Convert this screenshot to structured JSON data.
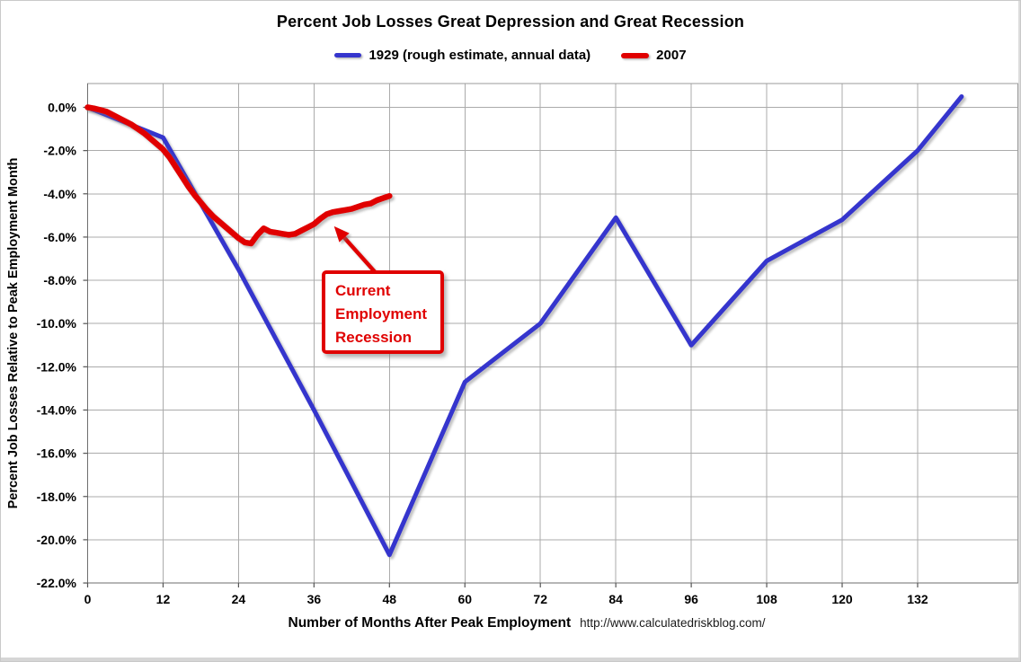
{
  "window": {
    "title": "Percent Job Losses Great Depression and Great Recession"
  },
  "source_note": "http://www.calculatedriskblog.com/",
  "colors": {
    "series_1929": "#3535cd",
    "series_2007": "#e00000",
    "gridline": "#ababab",
    "plot_frame": "#9b9b9b",
    "axis_line": "#6e6e6e",
    "tick": "#555555",
    "annotation_red": "#e00000"
  },
  "chart_data": {
    "type": "line",
    "title": "Percent Job Losses Great Depression and Great Recession",
    "xlabel": "Number of Months After Peak Employment",
    "ylabel": "Percent Job Losses Relative to Peak Employment Month",
    "xlim": [
      0,
      148
    ],
    "ylim": [
      -22,
      1
    ],
    "grid": true,
    "legend_position": "top-center",
    "x_ticks": [
      0,
      12,
      24,
      36,
      48,
      60,
      72,
      84,
      96,
      108,
      120,
      132
    ],
    "y_ticks": [
      {
        "value": 0,
        "label": "0.0%"
      },
      {
        "value": -2,
        "label": "-2.0%"
      },
      {
        "value": -4,
        "label": "-4.0%"
      },
      {
        "value": -6,
        "label": "-6.0%"
      },
      {
        "value": -8,
        "label": "-8.0%"
      },
      {
        "value": -10,
        "label": "-10.0%"
      },
      {
        "value": -12,
        "label": "-12.0%"
      },
      {
        "value": -14,
        "label": "-14.0%"
      },
      {
        "value": -16,
        "label": "-16.0%"
      },
      {
        "value": -18,
        "label": "-18.0%"
      },
      {
        "value": -20,
        "label": "-20.0%"
      },
      {
        "value": -22,
        "label": "-22.0%"
      }
    ],
    "series": [
      {
        "name": "1929 (rough estimate, annual data)",
        "color": "#3535cd",
        "line_width": 5,
        "points": [
          [
            0,
            0
          ],
          [
            12,
            -1.4
          ],
          [
            24,
            -7.5
          ],
          [
            36,
            -14.0
          ],
          [
            48,
            -20.7
          ],
          [
            60,
            -12.7
          ],
          [
            72,
            -10.0
          ],
          [
            84,
            -5.1
          ],
          [
            96,
            -11.0
          ],
          [
            108,
            -7.1
          ],
          [
            120,
            -5.2
          ],
          [
            132,
            -2.0
          ],
          [
            139,
            0.5
          ]
        ]
      },
      {
        "name": "2007",
        "color": "#e00000",
        "line_width": 6.5,
        "points": [
          [
            0,
            0
          ],
          [
            1,
            -0.05
          ],
          [
            2,
            -0.12
          ],
          [
            3,
            -0.2
          ],
          [
            4,
            -0.35
          ],
          [
            5,
            -0.5
          ],
          [
            6,
            -0.65
          ],
          [
            7,
            -0.8
          ],
          [
            8,
            -1.0
          ],
          [
            9,
            -1.2
          ],
          [
            10,
            -1.45
          ],
          [
            11,
            -1.7
          ],
          [
            12,
            -1.95
          ],
          [
            13,
            -2.3
          ],
          [
            14,
            -2.75
          ],
          [
            15,
            -3.2
          ],
          [
            16,
            -3.65
          ],
          [
            17,
            -4.05
          ],
          [
            18,
            -4.4
          ],
          [
            19,
            -4.75
          ],
          [
            20,
            -5.05
          ],
          [
            21,
            -5.3
          ],
          [
            22,
            -5.55
          ],
          [
            23,
            -5.8
          ],
          [
            24,
            -6.05
          ],
          [
            25,
            -6.25
          ],
          [
            26,
            -6.3
          ],
          [
            27,
            -5.9
          ],
          [
            28,
            -5.6
          ],
          [
            29,
            -5.75
          ],
          [
            30,
            -5.8
          ],
          [
            31,
            -5.85
          ],
          [
            32,
            -5.9
          ],
          [
            33,
            -5.85
          ],
          [
            34,
            -5.7
          ],
          [
            35,
            -5.55
          ],
          [
            36,
            -5.4
          ],
          [
            37,
            -5.15
          ],
          [
            38,
            -4.95
          ],
          [
            39,
            -4.85
          ],
          [
            40,
            -4.8
          ],
          [
            41,
            -4.75
          ],
          [
            42,
            -4.7
          ],
          [
            43,
            -4.6
          ],
          [
            44,
            -4.5
          ],
          [
            45,
            -4.45
          ],
          [
            46,
            -4.3
          ],
          [
            47,
            -4.2
          ],
          [
            48,
            -4.1
          ]
        ]
      }
    ],
    "annotation": {
      "lines": [
        "Current",
        "Employment",
        "Recession"
      ],
      "arrow_tail": [
        45.8,
        -7.65
      ],
      "arrow_tip": [
        39.2,
        -5.5
      ]
    }
  }
}
